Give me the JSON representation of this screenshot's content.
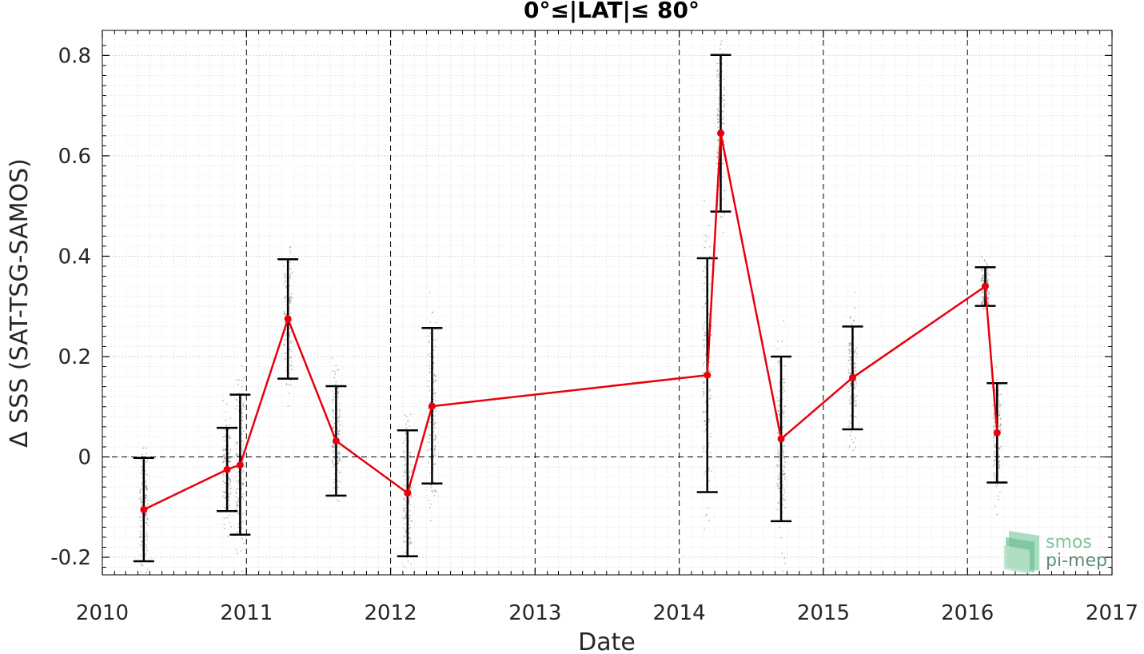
{
  "chart_data": {
    "type": "line",
    "title": "0°≤|LAT|≤ 80°",
    "xlabel": "Date",
    "ylabel": "Δ SSS (SAT-TSG-SAMOS)",
    "xlim": [
      "2010-01-01",
      "2017-01-01"
    ],
    "ylim": [
      -0.235,
      0.85
    ],
    "grid": true,
    "x_ticks": [
      "2010",
      "2011",
      "2012",
      "2013",
      "2014",
      "2015",
      "2016",
      "2017"
    ],
    "y_ticks": [
      {
        "value": -0.2,
        "label": "-0.2"
      },
      {
        "value": 0,
        "label": "0"
      },
      {
        "value": 0.2,
        "label": "0.2"
      },
      {
        "value": 0.4,
        "label": "0.4"
      },
      {
        "value": 0.6,
        "label": "0.6"
      },
      {
        "value": 0.8,
        "label": "0.8"
      }
    ],
    "series": [
      {
        "color": "#e8000b",
        "x": [
          "2010-04-16",
          "2010-11-13",
          "2010-12-16",
          "2011-04-16",
          "2011-08-16",
          "2012-02-13",
          "2012-04-15",
          "2014-03-13",
          "2014-04-16",
          "2014-09-16",
          "2015-03-16",
          "2016-02-15",
          "2016-03-16"
        ],
        "y": [
          -0.105,
          -0.025,
          -0.016,
          0.275,
          0.032,
          -0.072,
          0.101,
          0.163,
          0.645,
          0.036,
          0.158,
          0.34,
          0.048
        ],
        "error_low": [
          -0.208,
          -0.108,
          -0.155,
          0.156,
          -0.077,
          -0.198,
          -0.053,
          -0.07,
          0.489,
          -0.128,
          0.055,
          0.301,
          -0.051
        ],
        "error_high": [
          -0.002,
          0.058,
          0.124,
          0.394,
          0.141,
          0.053,
          0.257,
          0.396,
          0.801,
          0.2,
          0.26,
          0.378,
          0.147
        ]
      }
    ],
    "background_points_color": "#8c8c8c",
    "logo": {
      "text_top": "smos",
      "text_bottom": "pi-mep",
      "color": "#5aab7e"
    }
  }
}
